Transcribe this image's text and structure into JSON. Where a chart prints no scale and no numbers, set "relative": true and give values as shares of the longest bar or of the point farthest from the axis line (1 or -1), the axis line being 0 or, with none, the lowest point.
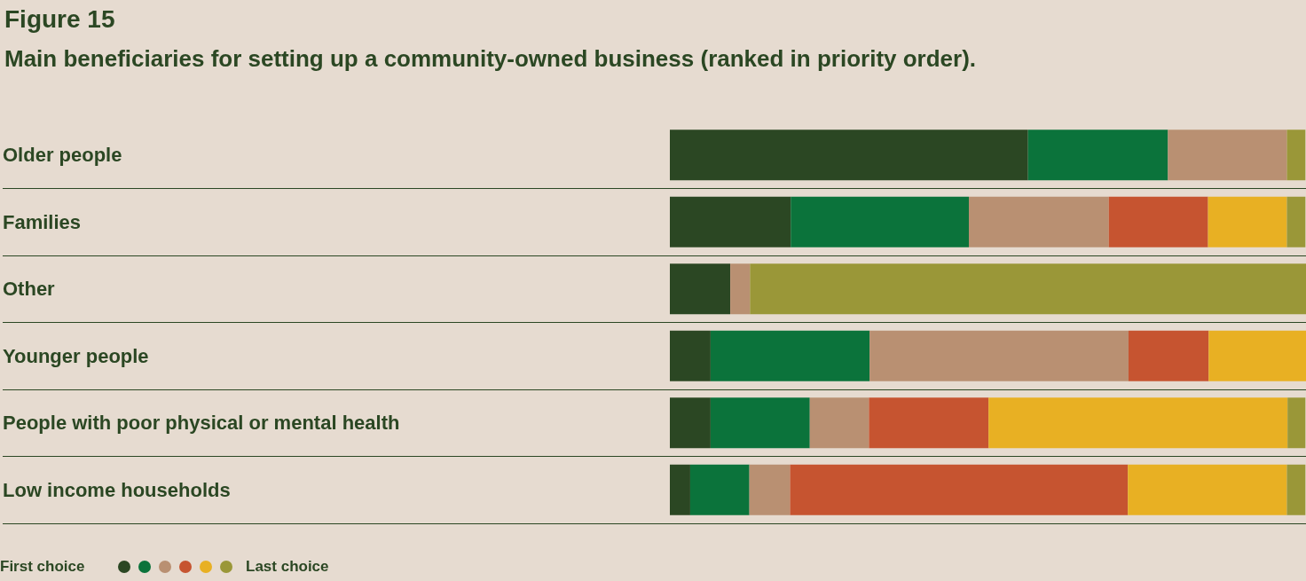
{
  "chart_data": {
    "type": "bar",
    "orientation": "horizontal",
    "stacked": true,
    "relative": true,
    "title": "Figure 15",
    "subtitle": "Main beneficiaries for setting up a community-owned business (ranked in priority order).",
    "categories": [
      "Older people",
      "Families",
      "Other",
      "Younger people",
      "People with poor physical or mental health",
      "Low income households"
    ],
    "series": [
      {
        "color": "#2b4723",
        "values": [
          0.563,
          0.19,
          0.095,
          0.064,
          0.064,
          0.032
        ]
      },
      {
        "color": "#0b733b",
        "values": [
          0.22,
          0.28,
          0,
          0.25,
          0.156,
          0.093
        ]
      },
      {
        "color": "#b99072",
        "values": [
          0.187,
          0.22,
          0.031,
          0.407,
          0.093,
          0.064
        ]
      },
      {
        "color": "#c65430",
        "values": [
          0,
          0.156,
          0,
          0.126,
          0.188,
          0.531
        ]
      },
      {
        "color": "#e8b023",
        "values": [
          0,
          0.124,
          0,
          0.153,
          0.47,
          0.25
        ]
      },
      {
        "color": "#9a9738",
        "values": [
          0.029,
          0.029,
          0.874,
          0,
          0.028,
          0.029
        ]
      }
    ],
    "grid": "y",
    "annotations": [
      "First choice",
      "Last choice"
    ]
  }
}
